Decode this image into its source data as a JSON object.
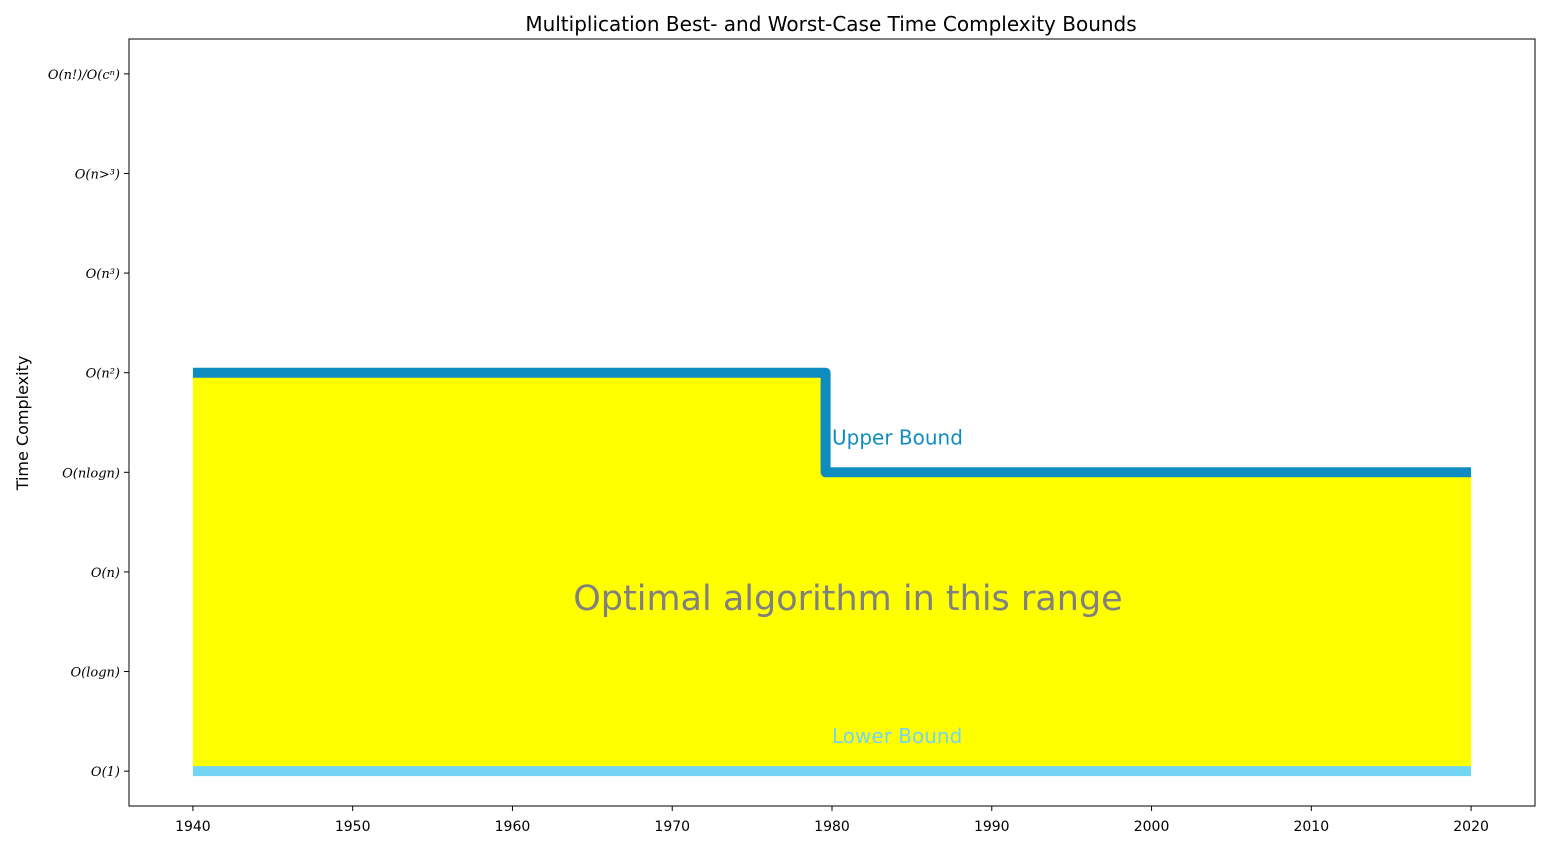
{
  "chart_data": {
    "type": "area",
    "title": "Multiplication Best- and Worst-Case Time Complexity Bounds",
    "xlabel": "",
    "ylabel": "Time Complexity",
    "xlim": [
      1936,
      2024
    ],
    "ylim": [
      -0.35,
      7.35
    ],
    "x_ticks": [
      1940,
      1950,
      1960,
      1970,
      1980,
      1990,
      2000,
      2010,
      2020
    ],
    "y_ticks": [
      {
        "value": 0,
        "label": "O(1)"
      },
      {
        "value": 1,
        "label": "O(logn)"
      },
      {
        "value": 2,
        "label": "O(n)"
      },
      {
        "value": 3,
        "label": "O(nlogn)"
      },
      {
        "value": 4,
        "label": "O(n²)"
      },
      {
        "value": 5,
        "label": "O(n³)"
      },
      {
        "value": 6,
        "label": "O(n>³)"
      },
      {
        "value": 7,
        "label": "O(n!)/O(cⁿ)"
      }
    ],
    "grid": false,
    "series": [
      {
        "name": "Upper Bound",
        "kind": "step-line",
        "color": "#108dc0",
        "points": [
          [
            1940,
            4
          ],
          [
            1979.6,
            4
          ],
          [
            1979.6,
            3
          ],
          [
            2020,
            3
          ]
        ]
      },
      {
        "name": "Lower Bound",
        "kind": "line",
        "color": "#74d4f4",
        "points": [
          [
            1940,
            0
          ],
          [
            2020,
            0
          ]
        ]
      }
    ],
    "fill": {
      "color": "#ffff00",
      "between": [
        "Lower Bound",
        "Upper Bound"
      ]
    },
    "annotations": [
      {
        "id": "upper",
        "text": "Upper Bound",
        "x": 1980,
        "y": 3.28,
        "color": "#108dc0"
      },
      {
        "id": "lower",
        "text": "Lower Bound",
        "x": 1980,
        "y": 0.28,
        "color": "#74d4f4"
      },
      {
        "id": "center",
        "text": "Optimal algorithm in this range",
        "x": 1981,
        "y": 1.62,
        "color": "#808080"
      }
    ]
  }
}
